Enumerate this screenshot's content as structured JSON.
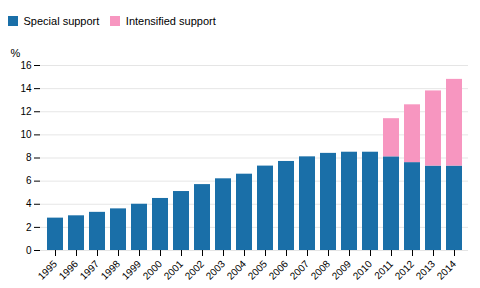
{
  "chart_data": {
    "type": "bar",
    "stacked": true,
    "categories": [
      "1995",
      "1996",
      "1997",
      "1998",
      "1999",
      "2000",
      "2001",
      "2002",
      "2003",
      "2004",
      "2005",
      "2006",
      "2007",
      "2008",
      "2009",
      "2010",
      "2011",
      "2012",
      "2013",
      "2014"
    ],
    "series": [
      {
        "name": "Special support",
        "color": "#1a6fa8",
        "values": [
          2.8,
          3.0,
          3.3,
          3.6,
          4.0,
          4.5,
          5.1,
          5.7,
          6.2,
          6.6,
          7.3,
          7.7,
          8.1,
          8.4,
          8.5,
          8.5,
          8.1,
          7.6,
          7.3,
          7.3
        ]
      },
      {
        "name": "Intensified support",
        "color": "#f796c0",
        "values": [
          0,
          0,
          0,
          0,
          0,
          0,
          0,
          0,
          0,
          0,
          0,
          0,
          0,
          0,
          0,
          0,
          3.3,
          5.0,
          6.5,
          7.5
        ]
      }
    ],
    "ylabel": "%",
    "ylim": [
      0,
      16
    ],
    "yticks": [
      0,
      2,
      4,
      6,
      8,
      10,
      12,
      14,
      16
    ],
    "grid": true,
    "legend": "upper left"
  }
}
